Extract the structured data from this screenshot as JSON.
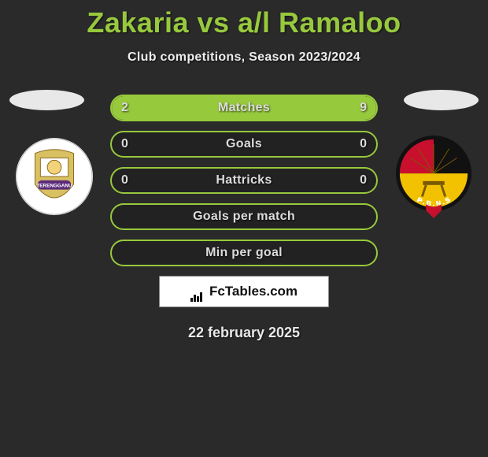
{
  "title": "Zakaria vs a/l Ramaloo",
  "subtitle": "Club competitions, Season 2023/2024",
  "date": "22 february 2025",
  "brand": "FcTables.com",
  "colors": {
    "accent": "#97c93d",
    "bg": "#2a2a2a",
    "row_bg": "#222222",
    "text": "#dcdcdc",
    "brand_bg": "#ffffff"
  },
  "rows": [
    {
      "label": "Matches",
      "left": "2",
      "right": "9",
      "left_pct": 18,
      "right_pct": 82
    },
    {
      "label": "Goals",
      "left": "0",
      "right": "0",
      "left_pct": 0,
      "right_pct": 0
    },
    {
      "label": "Hattricks",
      "left": "0",
      "right": "0",
      "left_pct": 0,
      "right_pct": 0
    },
    {
      "label": "Goals per match",
      "left": "",
      "right": "",
      "left_pct": 0,
      "right_pct": 0
    },
    {
      "label": "Min per goal",
      "left": "",
      "right": "",
      "left_pct": 0,
      "right_pct": 0
    }
  ],
  "left_club": {
    "name": "Terengganu",
    "crest_bg": "#ffffff",
    "crest_accent1": "#d9c063",
    "crest_accent2": "#5c2c7a",
    "crest_text": "TERENGGANU"
  },
  "right_club": {
    "name": "P.B.N.S",
    "crest_shape": "shield",
    "colors": {
      "top_left": "#c8102e",
      "top_right": "#111111",
      "bottom": "#f2c200"
    },
    "crest_text": "P.B.N.S"
  }
}
